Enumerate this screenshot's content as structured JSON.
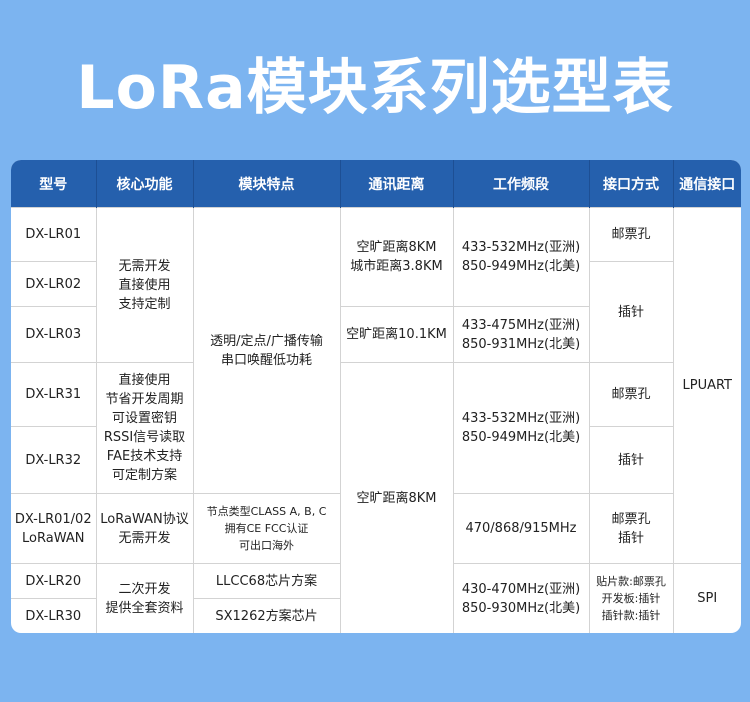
{
  "title": "LoRa模块系列选型表",
  "colors": {
    "background": "#7cb4f0",
    "header": "#2560ad"
  },
  "headers": [
    "型号",
    "核心功能",
    "模块特点",
    "通讯距离",
    "工作频段",
    "接口方式",
    "通信接口"
  ],
  "models": [
    "DX-LR01",
    "DX-LR02",
    "DX-LR03",
    "DX-LR31",
    "DX-LR32",
    "DX-LR01/02\nLoRaWAN",
    "DX-LR20",
    "DX-LR30"
  ],
  "core": [
    "无需开发\n直接使用\n支持定制",
    "直接使用\n节省开发周期\n可设置密钥\nRSSI信号读取\nFAE技术支持\n可定制方案",
    "LoRaWAN协议\n无需开发",
    "二次开发\n提供全套资料"
  ],
  "features": [
    "透明/定点/广播传输\n串口唤醒低功耗",
    "节点类型CLASS A, B, C\n拥有CE FCC认证\n可出口海外",
    "LLCC68芯片方案",
    "SX1262方案芯片"
  ],
  "distance": [
    "空旷距离8KM\n城市距离3.8KM",
    "空旷距离10.1KM",
    "空旷距离8KM"
  ],
  "frequency": [
    "433-532MHz(亚洲)\n850-949MHz(北美)",
    "433-475MHz(亚洲)\n850-931MHz(北美)",
    "433-532MHz(亚洲)\n850-949MHz(北美)",
    "470/868/915MHz",
    "430-470MHz(亚洲)\n850-930MHz(北美)"
  ],
  "mount": [
    "邮票孔",
    "插针",
    "邮票孔",
    "插针",
    "邮票孔\n插针",
    "贴片款:邮票孔\n开发板:插针\n插针款:插针"
  ],
  "comm": [
    "LPUART",
    "SPI"
  ]
}
